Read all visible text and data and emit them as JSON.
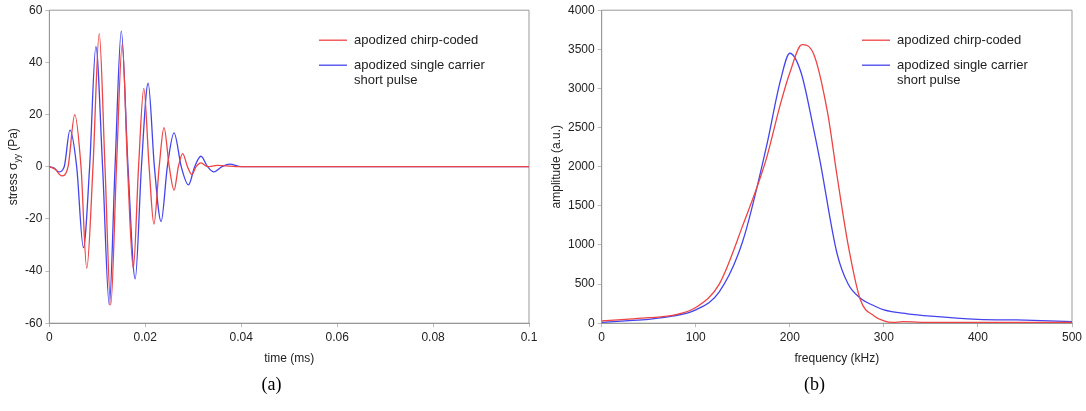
{
  "chart_data": [
    {
      "type": "line",
      "xlabel": "time (ms)",
      "ylabel": "stress σ$_{yy}$ (Pa)",
      "xlim": [
        0,
        0.1
      ],
      "xticks": [
        0,
        0.02,
        0.04,
        0.06,
        0.08,
        0.1
      ],
      "ylim": [
        -60,
        60
      ],
      "yticks": [
        -60,
        -40,
        -20,
        0,
        20,
        40,
        60
      ],
      "grid": false,
      "legend": "top right",
      "marker": "none",
      "line_style": "solid",
      "annotations": [
        "(a)"
      ],
      "series": [
        {
          "name": "apodized chirp-coded",
          "color": "#ee4444",
          "x": [
            0,
            0.0012,
            0.0026,
            0.0039,
            0.0053,
            0.0066,
            0.0078,
            0.0091,
            0.0104,
            0.0116,
            0.0128,
            0.014,
            0.0152,
            0.0163,
            0.0175,
            0.0186,
            0.0197,
            0.0208,
            0.0218,
            0.0229,
            0.0239,
            0.025,
            0.026,
            0.0269,
            0.0278,
            0.0288,
            0.0297,
            0.0306,
            0.0316,
            0.033,
            0.035,
            0.04,
            0.1
          ],
          "values": [
            0,
            -1,
            -3.5,
            0,
            20,
            0,
            -39,
            0,
            51,
            0,
            -53,
            0,
            47,
            0,
            -39,
            0,
            30,
            0,
            -22,
            0,
            15,
            0,
            -9,
            0,
            5,
            0,
            -3,
            0,
            1.5,
            0,
            0.5,
            0,
            0
          ]
        },
        {
          "name": "apodized single carrier short pulse",
          "color": "#4444ee",
          "x": [
            0,
            0.001,
            0.002,
            0.0031,
            0.0043,
            0.0057,
            0.0071,
            0.0084,
            0.0097,
            0.0111,
            0.0125,
            0.0137,
            0.015,
            0.0164,
            0.0179,
            0.0192,
            0.0206,
            0.0219,
            0.0233,
            0.0246,
            0.026,
            0.0275,
            0.029,
            0.0303,
            0.0316,
            0.033,
            0.0343,
            0.036,
            0.0376,
            0.04,
            0.1
          ],
          "values": [
            0,
            -0.5,
            -2,
            0,
            14,
            0,
            -31,
            0,
            46,
            0,
            -53,
            0,
            52,
            0,
            -43,
            0,
            32,
            0,
            -21,
            0,
            13,
            0,
            -7,
            0,
            4,
            0,
            -2,
            0,
            1,
            0,
            0
          ]
        }
      ]
    },
    {
      "type": "line",
      "xlabel": "frequency (kHz)",
      "ylabel": "amplitude (a.u.)",
      "xlim": [
        0,
        500
      ],
      "xticks": [
        0,
        100,
        200,
        300,
        400,
        500
      ],
      "ylim": [
        0,
        4000
      ],
      "yticks": [
        0,
        500,
        1000,
        1500,
        2000,
        2500,
        3000,
        3500,
        4000
      ],
      "grid": false,
      "legend": "top right",
      "marker": "none",
      "line_style": "solid",
      "annotations": [
        "(b)"
      ],
      "series": [
        {
          "name": "apodized chirp-coded",
          "color": "#ee4444",
          "x": [
            0,
            25,
            50,
            75,
            100,
            125,
            150,
            175,
            190,
            200,
            213,
            225,
            240,
            250,
            262,
            275,
            290,
            300,
            310,
            320,
            350,
            400,
            500
          ],
          "values": [
            30,
            50,
            70,
            100,
            200,
            500,
            1250,
            2100,
            2800,
            3200,
            3560,
            3450,
            2700,
            1900,
            1000,
            300,
            90,
            30,
            10,
            20,
            10,
            10,
            10
          ]
        },
        {
          "name": "apodized single carrier short pulse",
          "color": "#4444ee",
          "x": [
            0,
            25,
            50,
            75,
            100,
            125,
            150,
            175,
            190,
            200,
            212,
            225,
            232,
            250,
            262,
            275,
            290,
            300,
            325,
            350,
            400,
            450,
            500
          ],
          "values": [
            10,
            30,
            50,
            90,
            170,
            400,
            1050,
            2250,
            3100,
            3450,
            3200,
            2500,
            2080,
            900,
            500,
            320,
            220,
            170,
            120,
            90,
            50,
            40,
            20
          ]
        }
      ]
    }
  ]
}
